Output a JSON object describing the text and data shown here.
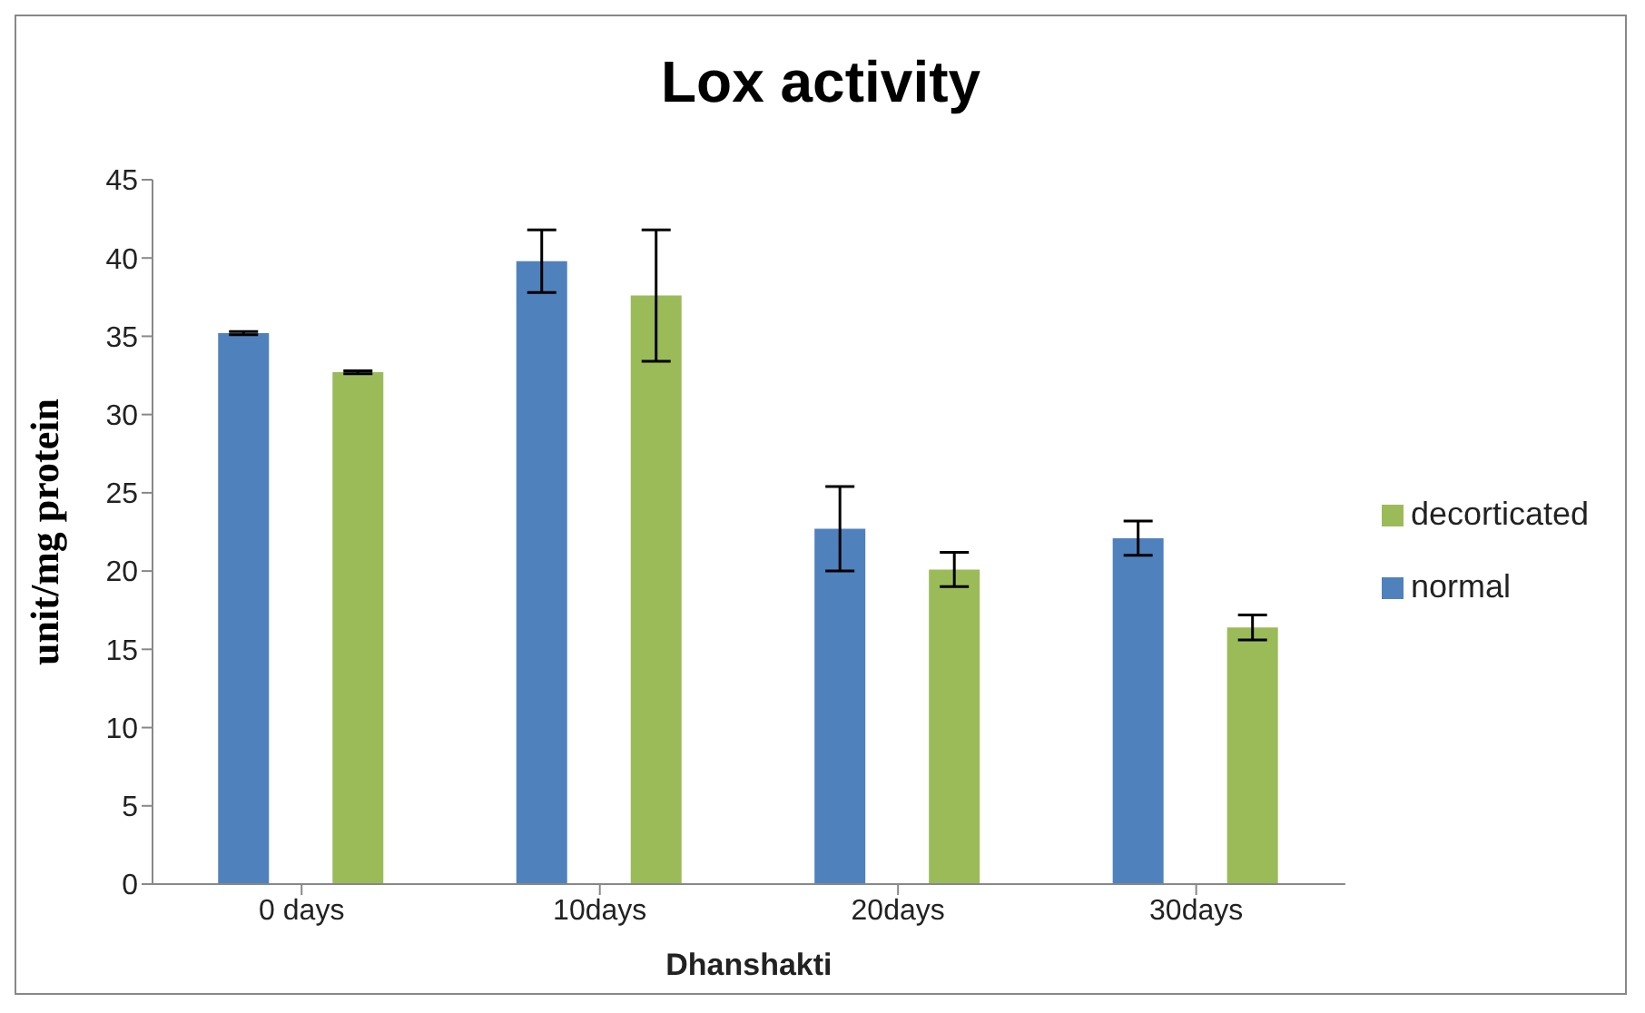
{
  "chart_data": {
    "type": "bar",
    "title": "Lox activity",
    "xlabel": "Dhanshakti",
    "ylabel": "unit/mg protein",
    "categories": [
      "0 days",
      "10days",
      "20days",
      "30days"
    ],
    "series": [
      {
        "name": "normal",
        "color": "#4f81bd",
        "values": [
          35.2,
          39.8,
          22.7,
          22.1
        ],
        "errors": [
          0.1,
          2.0,
          2.7,
          1.1
        ]
      },
      {
        "name": "decorticated",
        "color": "#9bbb59",
        "values": [
          32.7,
          37.6,
          20.1,
          16.4
        ],
        "errors": [
          0.1,
          4.2,
          1.1,
          0.8
        ]
      }
    ],
    "ylim": [
      0,
      45
    ],
    "yticks": [
      0,
      5,
      10,
      15,
      20,
      25,
      30,
      35,
      40,
      45
    ],
    "legend": "right"
  }
}
